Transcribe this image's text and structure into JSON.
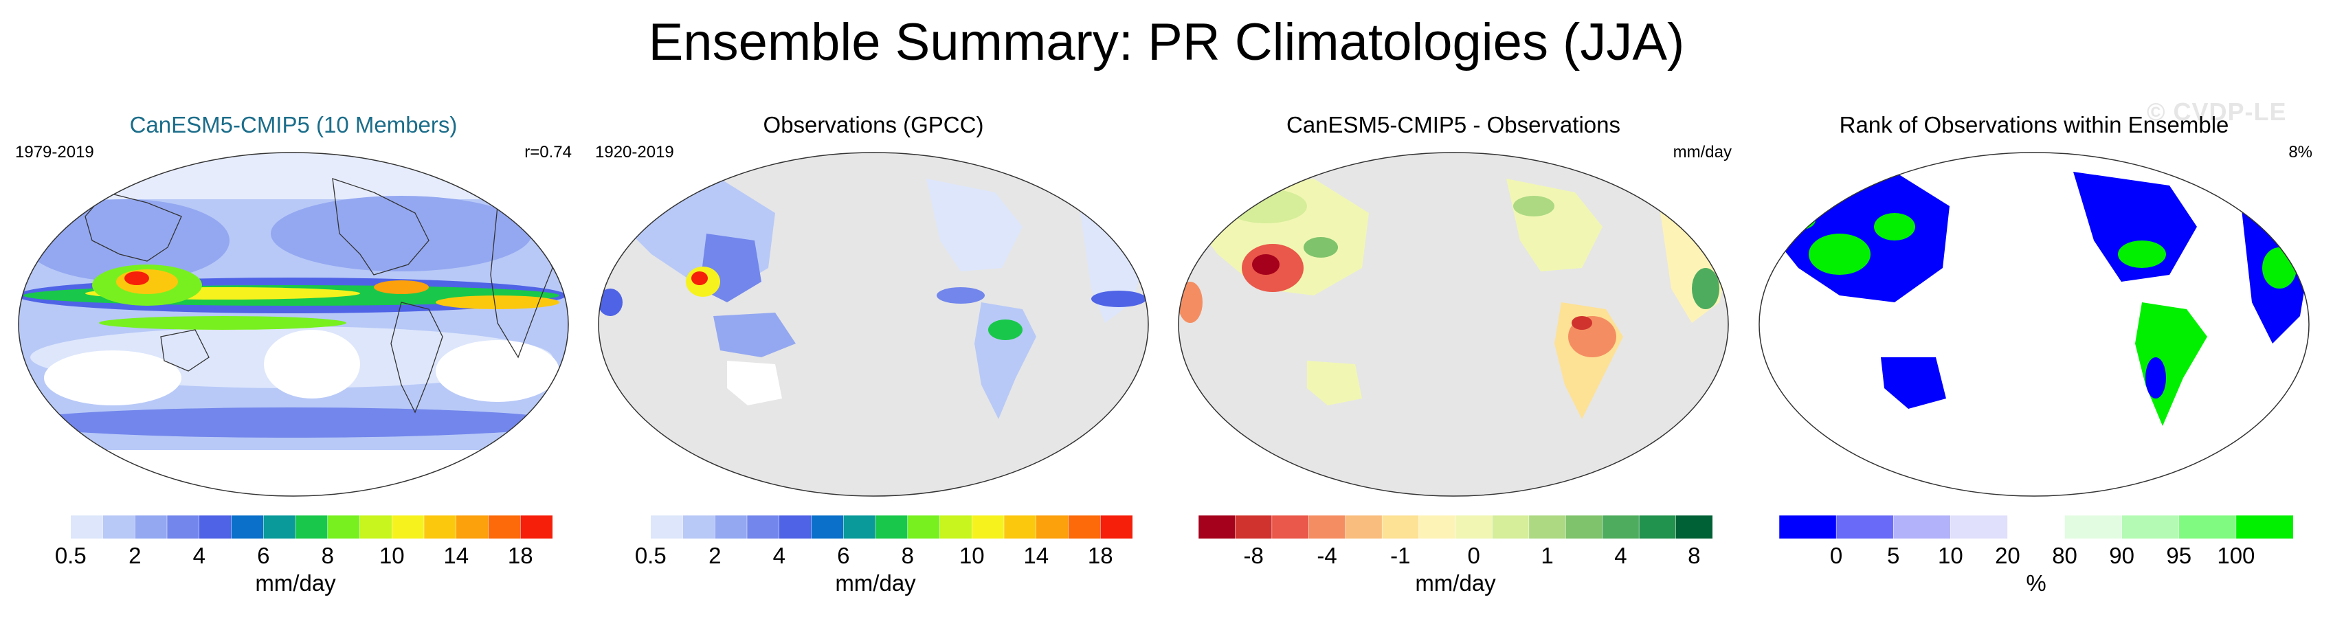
{
  "title": "Ensemble Summary: PR Climatologies (JJA)",
  "watermark": "© CVDP-LE",
  "colors": {
    "land_gray": "#e6e6e6",
    "title_teal": "#1b6d8a"
  },
  "chart_data": [
    {
      "type": "heatmap",
      "title": "CanESM5-CMIP5 (10 Members)",
      "period": "1979-2019",
      "stat": "r=0.74",
      "units": "mm/day",
      "colorbar": {
        "colors": [
          "#ffffff",
          "#dde6fb",
          "#b8c9f7",
          "#94a8f1",
          "#7286ec",
          "#4f63e6",
          "#0a70c9",
          "#0a9a9a",
          "#19c84a",
          "#78f020",
          "#c8f51e",
          "#f6f21e",
          "#fcc80e",
          "#fca00c",
          "#fc6a0a",
          "#f51f0a"
        ],
        "ticks": [
          "0.5",
          "2",
          "4",
          "6",
          "8",
          "10",
          "14",
          "18"
        ]
      }
    },
    {
      "type": "heatmap",
      "title": "Observations (GPCC)",
      "period": "1920-2019",
      "stat": "",
      "units": "mm/day",
      "colorbar": {
        "colors": [
          "#ffffff",
          "#dde6fb",
          "#b8c9f7",
          "#94a8f1",
          "#7286ec",
          "#4f63e6",
          "#0a70c9",
          "#0a9a9a",
          "#19c84a",
          "#78f020",
          "#c8f51e",
          "#f6f21e",
          "#fcc80e",
          "#fca00c",
          "#fc6a0a",
          "#f51f0a"
        ],
        "ticks": [
          "0.5",
          "2",
          "4",
          "6",
          "8",
          "10",
          "14",
          "18"
        ]
      }
    },
    {
      "type": "heatmap",
      "title": "CanESM5-CMIP5 - Observations",
      "period": "",
      "stat": "mm/day",
      "units": "mm/day",
      "colorbar": {
        "colors": [
          "#a5001c",
          "#d0332e",
          "#e9584a",
          "#f48e62",
          "#f9bd7d",
          "#fde195",
          "#fef3b7",
          "#f1f7b3",
          "#d6ed9a",
          "#acd982",
          "#7fc36c",
          "#4eac5e",
          "#22924f",
          "#006136"
        ],
        "ticks": [
          "-8",
          "-4",
          "-1",
          "0",
          "1",
          "4",
          "8"
        ]
      }
    },
    {
      "type": "heatmap",
      "title": "Rank of Observations within Ensemble",
      "period": "",
      "stat": "8%",
      "units": "%",
      "colorbar": {
        "colors": [
          "#0000ff",
          "#6a6af8",
          "#b2b2fa",
          "#e0e0fc",
          "#ffffff",
          "#e2fce2",
          "#b4fab4",
          "#80fa80",
          "#00f000"
        ],
        "ticks": [
          "0",
          "5",
          "10",
          "20",
          "80",
          "90",
          "95",
          "100"
        ]
      }
    }
  ]
}
